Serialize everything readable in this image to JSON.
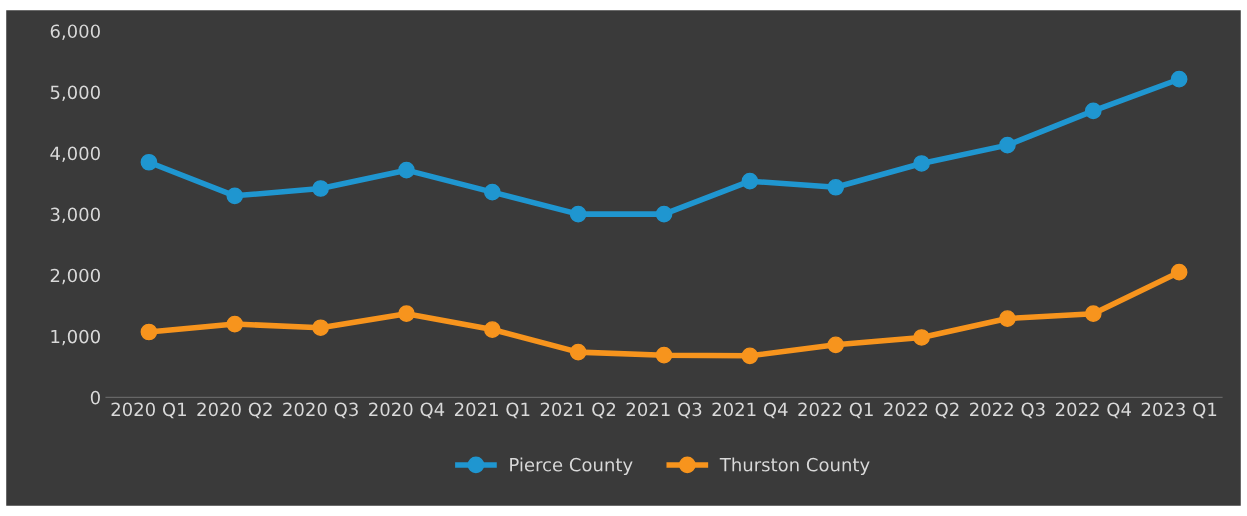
{
  "chart_data": {
    "type": "line",
    "categories": [
      "2020 Q1",
      "2020 Q2",
      "2020 Q3",
      "2020 Q4",
      "2021 Q1",
      "2021 Q2",
      "2021 Q3",
      "2021 Q4",
      "2022 Q1",
      "2022 Q2",
      "2022 Q3",
      "2022 Q4",
      "2023 Q1"
    ],
    "series": [
      {
        "name": "Pierce County",
        "color": "#1f96d0",
        "values": [
          3850,
          3300,
          3420,
          3720,
          3360,
          3000,
          3000,
          3540,
          3440,
          3830,
          4130,
          4690,
          5210
        ]
      },
      {
        "name": "Thurston County",
        "color": "#f7941d",
        "values": [
          1070,
          1200,
          1140,
          1370,
          1110,
          740,
          690,
          680,
          860,
          980,
          1290,
          1370,
          2050
        ]
      }
    ],
    "ylim": [
      0,
      6000
    ],
    "yticks": [
      {
        "value": 0,
        "label": "0"
      },
      {
        "value": 1000,
        "label": "1,000"
      },
      {
        "value": 2000,
        "label": "2,000"
      },
      {
        "value": 3000,
        "label": "3,000"
      },
      {
        "value": 4000,
        "label": "4,000"
      },
      {
        "value": 5000,
        "label": "5,000"
      },
      {
        "value": 6000,
        "label": "6,000"
      }
    ],
    "grid": false,
    "legend": "bottom",
    "marker": "circle",
    "line_style": "solid"
  }
}
